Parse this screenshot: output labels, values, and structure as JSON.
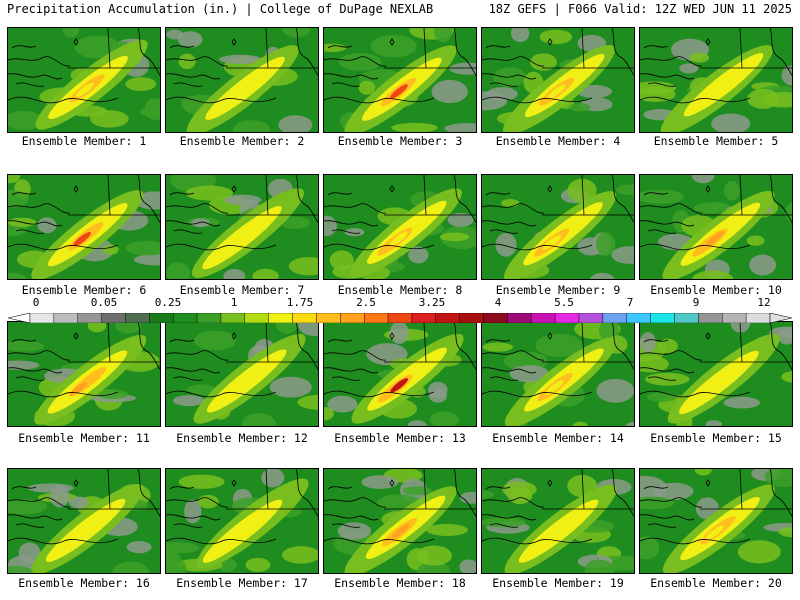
{
  "header": {
    "left": "Precipitation Accumulation (in.) | College of DuPage NEXLAB",
    "right": "18Z GEFS | F066 Valid: 12Z WED JUN 11 2025"
  },
  "caption_prefix": "Ensemble Member: ",
  "members": [
    {
      "id": 1,
      "label": "Ensemble Member: 1",
      "max_level": "1.75"
    },
    {
      "id": 2,
      "label": "Ensemble Member: 2",
      "max_level": "1"
    },
    {
      "id": 3,
      "label": "Ensemble Member: 3",
      "max_level": "3.25"
    },
    {
      "id": 4,
      "label": "Ensemble Member: 4",
      "max_level": "1.75"
    },
    {
      "id": 5,
      "label": "Ensemble Member: 5",
      "max_level": "1"
    },
    {
      "id": 6,
      "label": "Ensemble Member: 6",
      "max_level": "3.25"
    },
    {
      "id": 7,
      "label": "Ensemble Member: 7",
      "max_level": "1"
    },
    {
      "id": 8,
      "label": "Ensemble Member: 8",
      "max_level": "1.75"
    },
    {
      "id": 9,
      "label": "Ensemble Member: 9",
      "max_level": "1.75"
    },
    {
      "id": 10,
      "label": "Ensemble Member: 10",
      "max_level": "2.5"
    },
    {
      "id": 11,
      "label": "Ensemble Member: 11",
      "max_level": "2.5"
    },
    {
      "id": 12,
      "label": "Ensemble Member: 12",
      "max_level": "1"
    },
    {
      "id": 13,
      "label": "Ensemble Member: 13",
      "max_level": "4"
    },
    {
      "id": 14,
      "label": "Ensemble Member: 14",
      "max_level": "1.75"
    },
    {
      "id": 15,
      "label": "Ensemble Member: 15",
      "max_level": "1"
    },
    {
      "id": 16,
      "label": "Ensemble Member: 16",
      "max_level": "1"
    },
    {
      "id": 17,
      "label": "Ensemble Member: 17",
      "max_level": "1"
    },
    {
      "id": 18,
      "label": "Ensemble Member: 18",
      "max_level": "2.5"
    },
    {
      "id": 19,
      "label": "Ensemble Member: 19",
      "max_level": "1"
    },
    {
      "id": 20,
      "label": "Ensemble Member: 20",
      "max_level": "1.75"
    }
  ],
  "colorbar": {
    "unit": "in.",
    "labels": [
      "0",
      "0.05",
      "0.25",
      "1",
      "1.75",
      "2.5",
      "3.25",
      "4",
      "5.5",
      "7",
      "9",
      "12"
    ],
    "colors": [
      "#e6e6e6",
      "#bdbdbd",
      "#969696",
      "#6e6e6e",
      "#4f6e4f",
      "#1a7a1a",
      "#1e8c1e",
      "#3ca028",
      "#78be1e",
      "#b4dc14",
      "#f0f014",
      "#fadc14",
      "#ffbe1e",
      "#ffa01e",
      "#ff7814",
      "#f04614",
      "#dc1e1e",
      "#c31414",
      "#aa0f0f",
      "#8c0a1e",
      "#a00a78",
      "#c814b4",
      "#e628e6",
      "#b450dc",
      "#6ea0f0",
      "#3cc8ff",
      "#1ee6e6",
      "#50c8c8",
      "#969696",
      "#b4b4b4",
      "#dcdcdc"
    ]
  }
}
